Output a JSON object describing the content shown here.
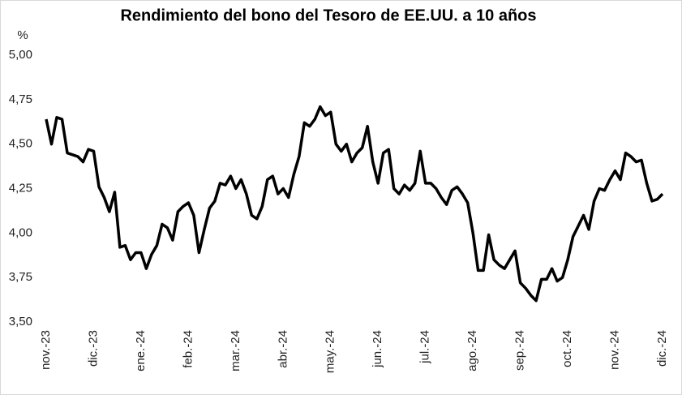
{
  "chart_data": {
    "type": "line",
    "title": "Rendimiento del bono del Tesoro de EE.UU. a 10 años",
    "y_label": "%",
    "categories": [
      "nov.-23",
      null,
      null,
      null,
      null,
      null,
      null,
      null,
      null,
      "dic.-23",
      null,
      null,
      null,
      null,
      null,
      null,
      null,
      null,
      "ene.-24",
      null,
      null,
      null,
      null,
      null,
      null,
      null,
      null,
      "feb.-24",
      null,
      null,
      null,
      null,
      null,
      null,
      null,
      null,
      "mar.-24",
      null,
      null,
      null,
      null,
      null,
      null,
      null,
      null,
      "abr.-24",
      null,
      null,
      null,
      null,
      null,
      null,
      null,
      null,
      "may.-24",
      null,
      null,
      null,
      null,
      null,
      null,
      null,
      null,
      "jun.-24",
      null,
      null,
      null,
      null,
      null,
      null,
      null,
      null,
      "jul.-24",
      null,
      null,
      null,
      null,
      null,
      null,
      null,
      null,
      "ago.-24",
      null,
      null,
      null,
      null,
      null,
      null,
      null,
      null,
      "sep.-24",
      null,
      null,
      null,
      null,
      null,
      null,
      null,
      null,
      "oct.-24",
      null,
      null,
      null,
      null,
      null,
      null,
      null,
      null,
      "nov.-24",
      null,
      null,
      null,
      null,
      null,
      null,
      null,
      null,
      "dic.-24"
    ],
    "values": [
      4.64,
      4.5,
      4.65,
      4.64,
      4.45,
      4.44,
      4.43,
      4.4,
      4.47,
      4.46,
      4.26,
      4.2,
      4.12,
      4.23,
      3.92,
      3.93,
      3.85,
      3.89,
      3.89,
      3.8,
      3.88,
      3.93,
      4.05,
      4.03,
      3.96,
      4.12,
      4.15,
      4.17,
      4.1,
      3.89,
      4.02,
      4.14,
      4.18,
      4.28,
      4.27,
      4.32,
      4.25,
      4.3,
      4.22,
      4.1,
      4.08,
      4.15,
      4.3,
      4.32,
      4.22,
      4.25,
      4.2,
      4.33,
      4.43,
      4.62,
      4.6,
      4.64,
      4.71,
      4.66,
      4.68,
      4.5,
      4.46,
      4.5,
      4.4,
      4.45,
      4.48,
      4.6,
      4.4,
      4.28,
      4.45,
      4.47,
      4.25,
      4.22,
      4.27,
      4.24,
      4.28,
      4.46,
      4.28,
      4.28,
      4.25,
      4.2,
      4.16,
      4.24,
      4.26,
      4.22,
      4.17,
      4.0,
      3.79,
      3.79,
      3.99,
      3.85,
      3.82,
      3.8,
      3.85,
      3.9,
      3.72,
      3.69,
      3.65,
      3.62,
      3.74,
      3.74,
      3.8,
      3.73,
      3.75,
      3.85,
      3.98,
      4.04,
      4.1,
      4.02,
      4.18,
      4.25,
      4.24,
      4.3,
      4.35,
      4.3,
      4.45,
      4.43,
      4.4,
      4.41,
      4.28,
      4.18,
      4.19,
      4.22
    ],
    "color": "#000000",
    "ylim": [
      3.5,
      5
    ],
    "yticks": [
      {
        "value": 3.5,
        "label": "3,50"
      },
      {
        "value": 3.75,
        "label": "3,75"
      },
      {
        "value": 4,
        "label": "4,00"
      },
      {
        "value": 4.25,
        "label": "4,25"
      },
      {
        "value": 4.5,
        "label": "4,50"
      },
      {
        "value": 4.75,
        "label": "4,75"
      },
      {
        "value": 5,
        "label": "5,00"
      }
    ],
    "grid": false
  }
}
